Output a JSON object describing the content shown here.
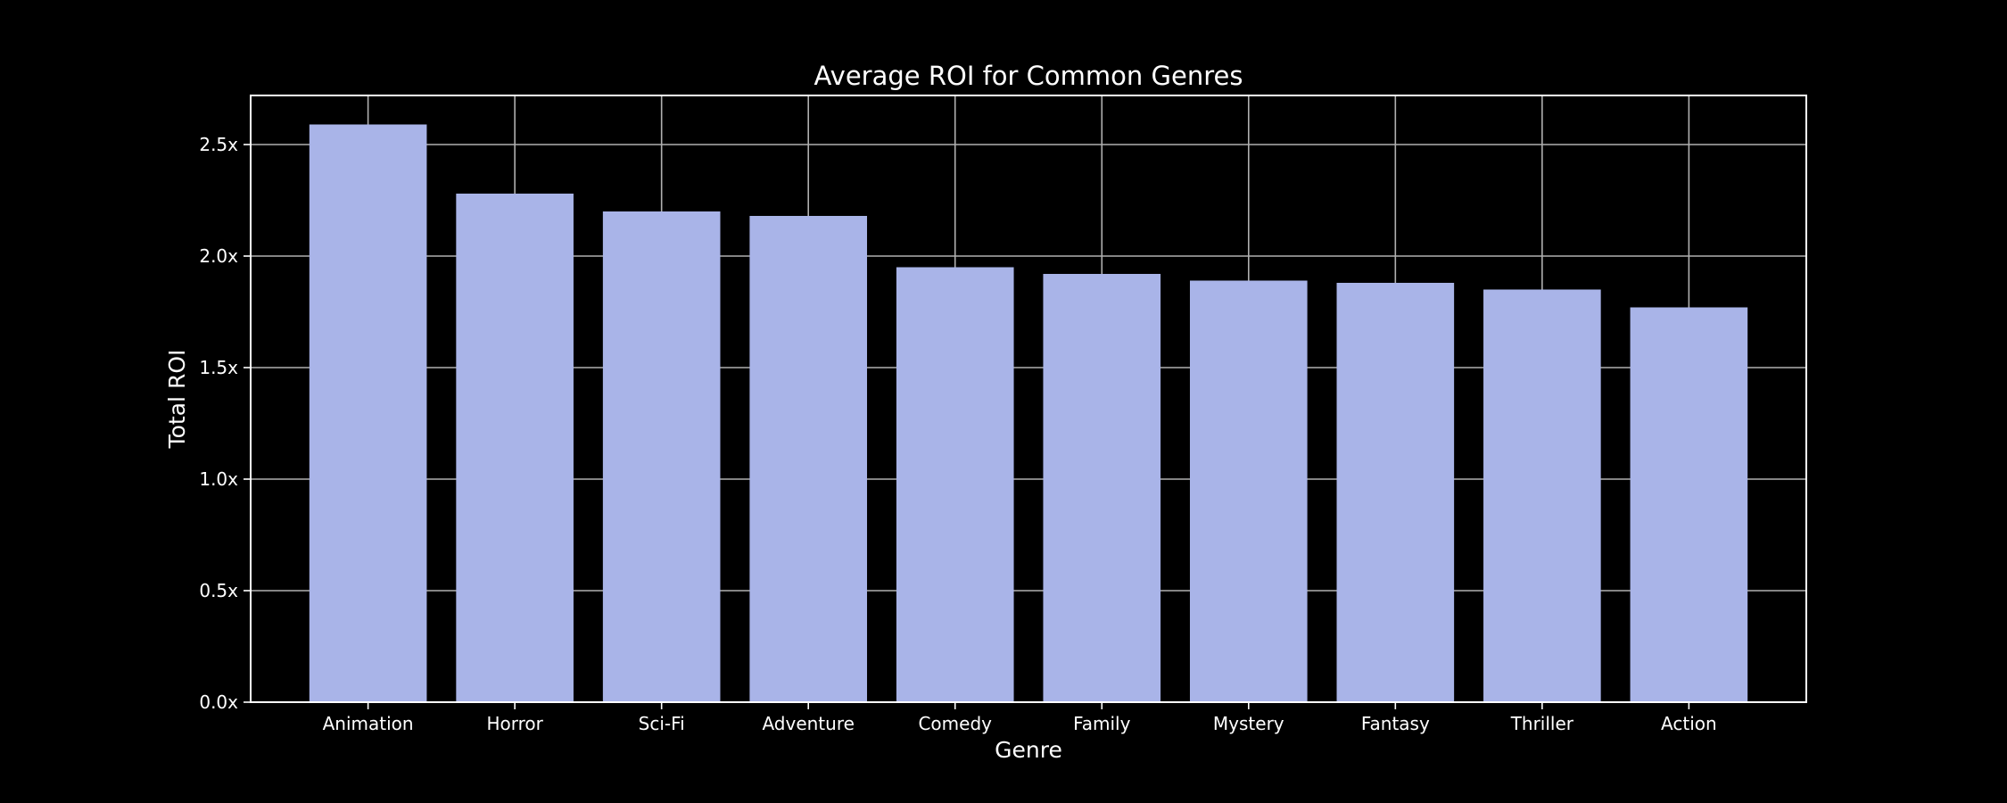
{
  "chart_data": {
    "type": "bar",
    "title": "Average ROI for Common Genres",
    "xlabel": "Genre",
    "ylabel": "Total ROI",
    "categories": [
      "Animation",
      "Horror",
      "Sci-Fi",
      "Adventure",
      "Comedy",
      "Family",
      "Mystery",
      "Fantasy",
      "Thriller",
      "Action"
    ],
    "values": [
      2.59,
      2.28,
      2.2,
      2.18,
      1.95,
      1.92,
      1.89,
      1.88,
      1.85,
      1.77
    ],
    "ylim": [
      0,
      2.72
    ],
    "yticks": [
      0.0,
      0.5,
      1.0,
      1.5,
      2.0,
      2.5
    ],
    "ytick_labels": [
      "0.0x",
      "0.5x",
      "1.0x",
      "1.5x",
      "2.0x",
      "2.5x"
    ],
    "grid": true,
    "bar_color": "#a9b4e8",
    "background_color": "#000000",
    "foreground_color": "#ffffff"
  }
}
